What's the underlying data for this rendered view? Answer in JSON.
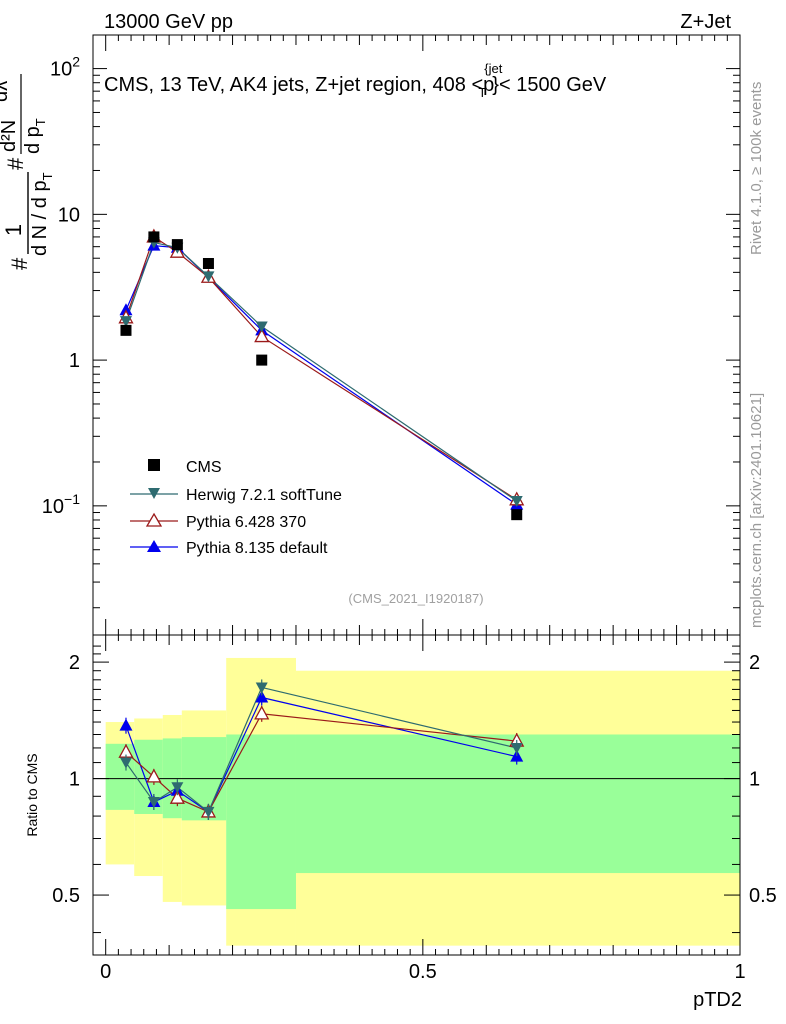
{
  "header": {
    "left": "13000 GeV pp",
    "right": "Z+Jet"
  },
  "side_labels": {
    "rivet": "Rivet 4.1.0, ≥ 100k events",
    "mcplots": "mcplots.cern.ch [arXiv:2401.10621]"
  },
  "colors": {
    "cms": "#000000",
    "herwig": "#2e6b70",
    "pythia6": "#9b1a1a",
    "pythia8": "#0000ee",
    "band_inner": "#99ff99",
    "band_outer": "#ffff99"
  },
  "chart_data": [
    {
      "type": "scatter",
      "panel": "main",
      "title": "CMS, 13 TeV, AK4 jets, Z+jet region, 408 <p_T^{jet}< 1500 GeV",
      "title_parts": {
        "main": "CMS, 13 TeV, AK4 jets, Z+jet region, 408 <p",
        "sup": "{jet",
        "sub": "T",
        "tail": "}< 1500 GeV"
      },
      "ylabel": "1/dN/dp_T  d²N/dp_T dλ",
      "ylabel_parts": {
        "num": "1",
        "den": "d N / d p",
        "den_sub": "T",
        "frac2_num": "d²N",
        "frac2_den": "d p",
        "frac2_sub": "T",
        "tail": "dλ",
        "hash": "#"
      },
      "yscale": "log",
      "ylim": [
        0.013,
        170
      ],
      "xlim": [
        -0.02,
        1.0
      ],
      "y_ticks": [
        {
          "value": 0.1,
          "base": "10",
          "exp": "−1"
        },
        {
          "value": 1,
          "label": "1"
        },
        {
          "value": 10,
          "label": "10"
        },
        {
          "value": 100,
          "base": "10",
          "exp": "2"
        }
      ],
      "watermark": "(CMS_2021_I1920187)",
      "legend_position": "center-left",
      "series": [
        {
          "name": "CMS",
          "marker": "square",
          "x": [
            0.032,
            0.076,
            0.113,
            0.162,
            0.246,
            0.648
          ],
          "y": [
            1.6,
            7.0,
            6.2,
            4.6,
            1.0,
            0.087
          ]
        },
        {
          "name": "Herwig 7.2.1 softTune",
          "marker": "triangle-down",
          "x": [
            0.032,
            0.076,
            0.113,
            0.162,
            0.246,
            0.648
          ],
          "y": [
            1.85,
            6.4,
            5.9,
            3.75,
            1.7,
            0.108
          ]
        },
        {
          "name": "Pythia 6.428 370",
          "marker": "triangle-up-open",
          "x": [
            0.032,
            0.076,
            0.113,
            0.162,
            0.246,
            0.648
          ],
          "y": [
            1.95,
            7.0,
            5.5,
            3.7,
            1.45,
            0.11
          ]
        },
        {
          "name": "Pythia 8.135 default",
          "marker": "triangle-up",
          "x": [
            0.032,
            0.076,
            0.113,
            0.162,
            0.246,
            0.648
          ],
          "y": [
            2.2,
            6.1,
            5.9,
            3.7,
            1.6,
            0.102
          ]
        }
      ]
    },
    {
      "type": "line",
      "panel": "ratio",
      "ylabel": "Ratio to CMS",
      "xlabel": "pTD2",
      "yscale": "log",
      "ylim": [
        0.35,
        2.35
      ],
      "xlim": [
        -0.02,
        1.0
      ],
      "x_ticks": [
        {
          "value": 0,
          "label": "0"
        },
        {
          "value": 0.5,
          "label": "0.5"
        },
        {
          "value": 1,
          "label": "1"
        }
      ],
      "y_ticks": [
        {
          "value": 0.5,
          "label": "0.5"
        },
        {
          "value": 1,
          "label": "1"
        },
        {
          "value": 2,
          "label": "2"
        }
      ],
      "uncertainty_bands": [
        {
          "x": [
            0.0,
            0.045
          ],
          "inner": [
            0.83,
            1.23
          ],
          "outer": [
            0.6,
            1.4
          ]
        },
        {
          "x": [
            0.045,
            0.09
          ],
          "inner": [
            0.81,
            1.26
          ],
          "outer": [
            0.56,
            1.43
          ]
        },
        {
          "x": [
            0.09,
            0.12
          ],
          "inner": [
            0.79,
            1.27
          ],
          "outer": [
            0.48,
            1.46
          ]
        },
        {
          "x": [
            0.12,
            0.19
          ],
          "inner": [
            0.78,
            1.28
          ],
          "outer": [
            0.47,
            1.5
          ]
        },
        {
          "x": [
            0.19,
            0.3
          ],
          "inner": [
            0.46,
            1.3
          ],
          "outer": [
            0.37,
            2.05
          ]
        },
        {
          "x": [
            0.3,
            1.0
          ],
          "inner": [
            0.57,
            1.3
          ],
          "outer": [
            0.37,
            1.9
          ]
        }
      ],
      "series": [
        {
          "name": "Herwig 7.2.1 softTune",
          "x": [
            0.032,
            0.076,
            0.113,
            0.162,
            0.246,
            0.648
          ],
          "y": [
            1.1,
            0.87,
            0.95,
            0.82,
            1.72,
            1.2
          ]
        },
        {
          "name": "Pythia 6.428 370",
          "x": [
            0.032,
            0.076,
            0.113,
            0.162,
            0.246,
            0.648
          ],
          "y": [
            1.17,
            1.01,
            0.89,
            0.82,
            1.47,
            1.25
          ]
        },
        {
          "name": "Pythia 8.135 default",
          "x": [
            0.032,
            0.076,
            0.113,
            0.162,
            0.246,
            0.648
          ],
          "y": [
            1.37,
            0.87,
            0.93,
            0.82,
            1.62,
            1.14
          ]
        }
      ]
    }
  ]
}
